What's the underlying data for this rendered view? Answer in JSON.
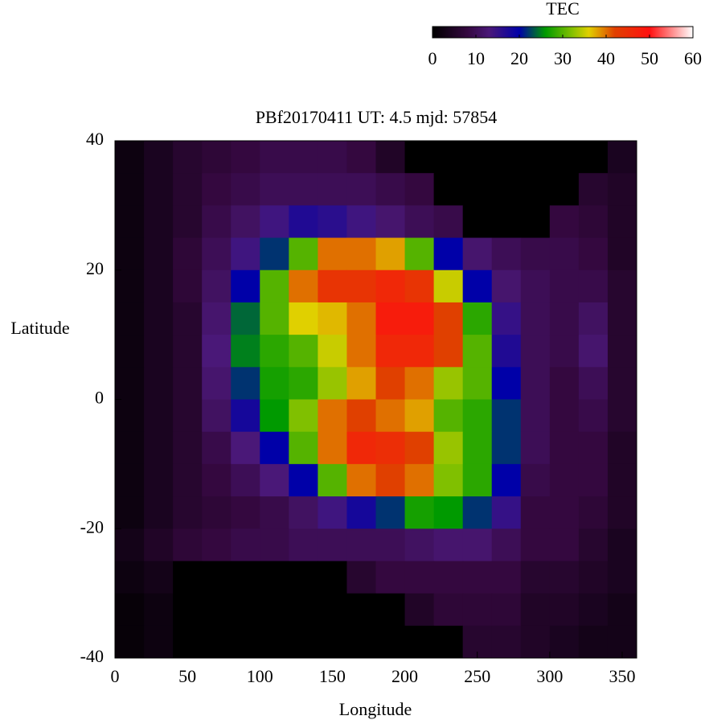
{
  "chart_data": {
    "type": "heatmap",
    "title": "PBf20170411  UT: 4.5  mjd: 57854",
    "xlabel": "Longitude",
    "ylabel": "Latitude",
    "colorbar_title": "TEC",
    "x": [
      10,
      30,
      50,
      70,
      90,
      110,
      130,
      150,
      170,
      190,
      210,
      230,
      250,
      270,
      290,
      310,
      330,
      350
    ],
    "y": [
      37.5,
      32.5,
      27.5,
      22.5,
      17.5,
      12.5,
      7.5,
      2.5,
      -2.5,
      -7.5,
      -12.5,
      -17.5,
      -22.5,
      -27.5,
      -32.5,
      -37.5
    ],
    "z": [
      [
        2,
        4,
        6,
        7,
        8,
        9,
        9,
        9,
        8,
        5,
        0,
        0,
        0,
        0,
        0,
        0,
        0,
        4
      ],
      [
        2,
        4,
        6,
        8,
        9,
        10,
        10,
        10,
        10,
        9,
        8,
        0,
        0,
        0,
        0,
        0,
        6,
        5
      ],
      [
        2,
        4,
        6,
        9,
        11,
        14,
        17,
        16,
        14,
        12,
        10,
        9,
        0,
        0,
        0,
        8,
        7,
        5
      ],
      [
        2,
        4,
        7,
        10,
        14,
        22,
        30,
        40,
        40,
        38,
        30,
        20,
        12,
        10,
        9,
        9,
        8,
        5
      ],
      [
        2,
        4,
        7,
        11,
        20,
        30,
        40,
        44,
        44,
        46,
        44,
        35,
        20,
        12,
        10,
        9,
        9,
        6
      ],
      [
        2,
        4,
        6,
        12,
        24,
        30,
        36,
        37,
        40,
        48,
        48,
        42,
        28,
        15,
        10,
        9,
        11,
        6
      ],
      [
        2,
        4,
        6,
        13,
        25,
        28,
        30,
        35,
        40,
        46,
        46,
        42,
        30,
        17,
        10,
        9,
        12,
        6
      ],
      [
        2,
        4,
        6,
        12,
        22,
        27,
        28,
        33,
        38,
        42,
        40,
        33,
        30,
        20,
        10,
        8,
        10,
        6
      ],
      [
        2,
        4,
        6,
        11,
        18,
        26,
        32,
        40,
        42,
        40,
        38,
        30,
        28,
        22,
        10,
        8,
        9,
        6
      ],
      [
        2,
        4,
        6,
        9,
        13,
        20,
        30,
        40,
        46,
        45,
        42,
        33,
        28,
        22,
        10,
        8,
        8,
        5
      ],
      [
        2,
        4,
        6,
        8,
        10,
        13,
        20,
        30,
        40,
        42,
        40,
        32,
        28,
        20,
        9,
        8,
        8,
        5
      ],
      [
        2,
        4,
        6,
        7,
        8,
        9,
        11,
        14,
        18,
        22,
        27,
        26,
        22,
        15,
        8,
        8,
        7,
        5
      ],
      [
        3,
        5,
        7,
        8,
        9,
        9,
        10,
        10,
        10,
        10,
        11,
        12,
        12,
        10,
        8,
        8,
        6,
        4
      ],
      [
        2,
        3,
        0,
        0,
        0,
        0,
        0,
        0,
        6,
        8,
        8,
        8,
        8,
        8,
        6,
        6,
        5,
        4
      ],
      [
        1,
        2,
        0,
        0,
        0,
        0,
        0,
        0,
        0,
        0,
        5,
        7,
        7,
        7,
        5,
        5,
        4,
        3
      ],
      [
        1,
        2,
        0,
        0,
        0,
        0,
        0,
        0,
        0,
        0,
        0,
        0,
        6,
        6,
        5,
        4,
        3,
        3
      ]
    ],
    "xlim": [
      0,
      360
    ],
    "xticks": [
      0,
      50,
      100,
      150,
      200,
      250,
      300,
      350
    ],
    "ylim": [
      -40,
      40
    ],
    "yticks": [
      -40,
      -20,
      0,
      20,
      40
    ],
    "clim": [
      0,
      60
    ],
    "cticks": [
      0,
      10,
      20,
      30,
      40,
      50,
      60
    ],
    "colorscale": [
      [
        0,
        "#000000"
      ],
      [
        8,
        "#34083f"
      ],
      [
        13,
        "#4a1878"
      ],
      [
        20,
        "#0000a8"
      ],
      [
        26,
        "#009a00"
      ],
      [
        32,
        "#80c000"
      ],
      [
        36,
        "#e0d000"
      ],
      [
        42,
        "#e04000"
      ],
      [
        50,
        "#ff1010"
      ],
      [
        60,
        "#ffffff"
      ]
    ]
  }
}
